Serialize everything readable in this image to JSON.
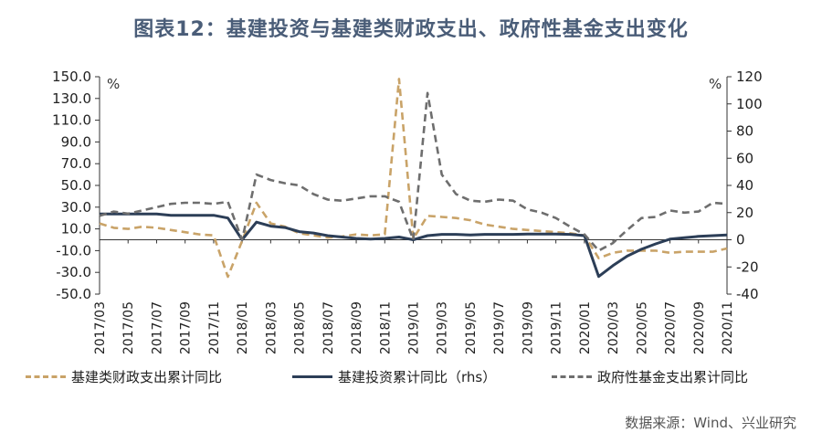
{
  "title": "图表12：基建投资与基建类财政支出、政府性基金支出变化",
  "source": "数据来源：Wind、兴业研究",
  "colors": {
    "fiscal": "#c9a368",
    "infra": "#2c3e57",
    "fund": "#6e6e6e",
    "axis": "#333333",
    "title": "#4a5d78"
  },
  "legend": {
    "fiscal": "基建类财政支出累计同比",
    "infra": "基建投资累计同比（rhs）",
    "fund": "政府性基金支出累计同比"
  },
  "chart_data": {
    "type": "line",
    "title": "图表12：基建投资与基建类财政支出、政府性基金支出变化",
    "y_left": {
      "unit": "%",
      "min": -50,
      "max": 150,
      "ticks": [
        "150.0",
        "130.0",
        "110.0",
        "90.0",
        "70.0",
        "50.0",
        "30.0",
        "10.0",
        "-10.0",
        "-30.0",
        "-50.0"
      ]
    },
    "y_right": {
      "unit": "%",
      "min": -40,
      "max": 120,
      "ticks": [
        "120",
        "100",
        "80",
        "60",
        "40",
        "20",
        "0",
        "-20",
        "-40"
      ]
    },
    "x": [
      "2017/03",
      "2017/04",
      "2017/05",
      "2017/06",
      "2017/07",
      "2017/08",
      "2017/09",
      "2017/10",
      "2017/11",
      "2017/12",
      "2018/01",
      "2018/02",
      "2018/03",
      "2018/04",
      "2018/05",
      "2018/06",
      "2018/07",
      "2018/08",
      "2018/09",
      "2018/10",
      "2018/11",
      "2018/12",
      "2019/01",
      "2019/02",
      "2019/03",
      "2019/04",
      "2019/05",
      "2019/06",
      "2019/07",
      "2019/08",
      "2019/09",
      "2019/10",
      "2019/11",
      "2019/12",
      "2020/01",
      "2020/02",
      "2020/03",
      "2020/04",
      "2020/05",
      "2020/06",
      "2020/07",
      "2020/08",
      "2020/09",
      "2020/10",
      "2020/11"
    ],
    "x_tick_labels": [
      "2017/03",
      "2017/05",
      "2017/07",
      "2017/09",
      "2017/11",
      "2018/01",
      "2018/03",
      "2018/05",
      "2018/07",
      "2018/09",
      "2018/11",
      "2019/01",
      "2019/03",
      "2019/05",
      "2019/07",
      "2019/09",
      "2019/11",
      "2020/01",
      "2020/03",
      "2020/05",
      "2020/07",
      "2020/09",
      "2020/11"
    ],
    "series": [
      {
        "name": "基建类财政支出累计同比",
        "axis": "left",
        "style": "dashed",
        "values": [
          15,
          11,
          10,
          12,
          11,
          9,
          7,
          5,
          4,
          -34,
          -1,
          34,
          15,
          12,
          6,
          4,
          2,
          3,
          5,
          4,
          5,
          148,
          1,
          22,
          21,
          20,
          18,
          14,
          12,
          10,
          9,
          8,
          7,
          6,
          4,
          -17,
          -12,
          -10,
          -10,
          -10,
          -12,
          -11,
          -11,
          -11,
          -8
        ]
      },
      {
        "name": "基建投资累计同比（rhs）",
        "axis": "right",
        "style": "solid",
        "values": [
          19,
          19,
          19,
          19,
          19,
          18,
          18,
          18,
          18,
          16,
          0,
          13,
          10,
          9,
          6,
          5,
          3,
          2,
          1,
          0.5,
          1,
          2,
          0,
          3,
          4,
          4,
          3.5,
          4,
          4,
          4,
          4.2,
          4.2,
          4.2,
          4,
          3,
          -27,
          -19,
          -12,
          -7,
          -3,
          0.5,
          1.5,
          2.5,
          3,
          3.5
        ]
      },
      {
        "name": "政府性基金支出累计同比",
        "axis": "left",
        "style": "dashed",
        "values": [
          22,
          26,
          24,
          27,
          30,
          33,
          34,
          34,
          33,
          35,
          0,
          60,
          55,
          52,
          50,
          42,
          37,
          36,
          38,
          40,
          40,
          35,
          0,
          135,
          60,
          42,
          36,
          35,
          37,
          36,
          28,
          25,
          20,
          12,
          5,
          -10,
          -3,
          9,
          20,
          21,
          27,
          25,
          26,
          34,
          33
        ]
      }
    ],
    "legend_position": "bottom"
  }
}
